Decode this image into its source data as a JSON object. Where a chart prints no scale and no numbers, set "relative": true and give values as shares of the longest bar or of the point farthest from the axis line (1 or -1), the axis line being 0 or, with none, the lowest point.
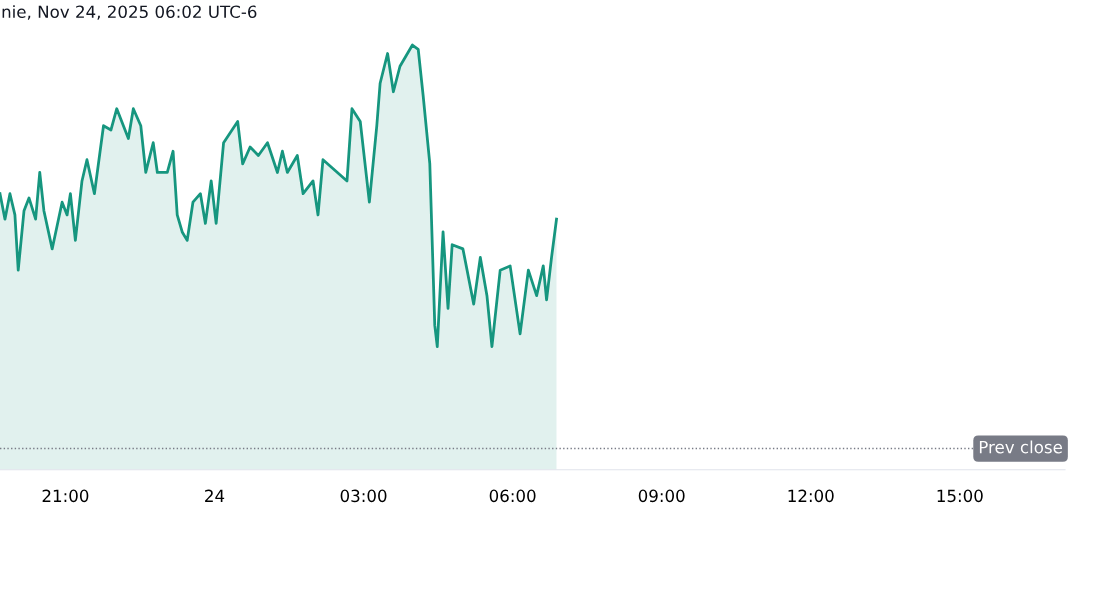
{
  "chart_data": {
    "type": "area",
    "relative": true,
    "annotations": [
      "nie, Nov 24, 2025 06:02 UTC-6"
    ],
    "x": [
      "2025-11-23T19:41",
      "2025-11-23T19:47",
      "2025-11-23T19:53",
      "2025-11-23T19:59",
      "2025-11-23T20:03",
      "2025-11-23T20:10",
      "2025-11-23T20:16",
      "2025-11-23T20:24",
      "2025-11-23T20:29",
      "2025-11-23T20:34",
      "2025-11-23T20:44",
      "2025-11-23T20:56",
      "2025-11-23T21:02",
      "2025-11-23T21:06",
      "2025-11-23T21:12",
      "2025-11-23T21:20",
      "2025-11-23T21:26",
      "2025-11-23T21:35",
      "2025-11-23T21:46",
      "2025-11-23T21:55",
      "2025-11-23T22:02",
      "2025-11-23T22:16",
      "2025-11-23T22:22",
      "2025-11-23T22:31",
      "2025-11-23T22:37",
      "2025-11-23T22:46",
      "2025-11-23T22:51",
      "2025-11-23T23:03",
      "2025-11-23T23:10",
      "2025-11-23T23:15",
      "2025-11-23T23:21",
      "2025-11-23T23:27",
      "2025-11-23T23:34",
      "2025-11-23T23:43",
      "2025-11-23T23:49",
      "2025-11-23T23:56",
      "2025-11-24T00:02",
      "2025-11-24T00:11",
      "2025-11-24T00:28",
      "2025-11-24T00:34",
      "2025-11-24T00:43",
      "2025-11-24T00:53",
      "2025-11-24T01:04",
      "2025-11-24T01:16",
      "2025-11-24T01:22",
      "2025-11-24T01:28",
      "2025-11-24T01:40",
      "2025-11-24T01:47",
      "2025-11-24T01:59",
      "2025-11-24T02:05",
      "2025-11-24T02:11",
      "2025-11-24T02:40",
      "2025-11-24T02:46",
      "2025-11-24T02:56",
      "2025-11-24T03:07",
      "2025-11-24T03:16",
      "2025-11-24T03:20",
      "2025-11-24T03:29",
      "2025-11-24T03:36",
      "2025-11-24T03:44",
      "2025-11-24T03:59",
      "2025-11-24T04:06",
      "2025-11-24T04:12",
      "2025-11-24T04:20",
      "2025-11-24T04:26",
      "2025-11-24T04:29",
      "2025-11-24T04:36",
      "2025-11-24T04:42",
      "2025-11-24T04:47",
      "2025-11-24T05:00",
      "2025-11-24T05:13",
      "2025-11-24T05:21",
      "2025-11-24T05:29",
      "2025-11-24T05:35",
      "2025-11-24T05:45",
      "2025-11-24T05:57",
      "2025-11-24T06:09",
      "2025-11-24T06:19",
      "2025-11-24T06:29",
      "2025-11-24T06:37",
      "2025-11-24T06:41",
      "2025-11-24T06:47",
      "2025-11-24T06:53"
    ],
    "series": [
      {
        "color": "#16967f",
        "values": [
          0.65,
          0.59,
          0.65,
          0.6,
          0.47,
          0.61,
          0.64,
          0.59,
          0.7,
          0.61,
          0.52,
          0.63,
          0.6,
          0.65,
          0.54,
          0.68,
          0.73,
          0.65,
          0.81,
          0.8,
          0.85,
          0.78,
          0.85,
          0.81,
          0.7,
          0.77,
          0.7,
          0.7,
          0.75,
          0.6,
          0.56,
          0.54,
          0.63,
          0.65,
          0.58,
          0.68,
          0.58,
          0.77,
          0.82,
          0.72,
          0.76,
          0.74,
          0.77,
          0.7,
          0.75,
          0.7,
          0.74,
          0.65,
          0.68,
          0.6,
          0.73,
          0.68,
          0.85,
          0.82,
          0.63,
          0.81,
          0.91,
          0.98,
          0.89,
          0.95,
          1,
          0.99,
          0.88,
          0.72,
          0.34,
          0.29,
          0.56,
          0.38,
          0.53,
          0.52,
          0.39,
          0.5,
          0.41,
          0.29,
          0.47,
          0.48,
          0.32,
          0.47,
          0.41,
          0.48,
          0.4,
          0.5,
          0.59
        ]
      }
    ],
    "xlim": [
      "2025-11-23T19:41",
      "2025-11-24T17:07"
    ],
    "xticks": [
      {
        "value": "2025-11-23T21:00",
        "label": "21:00"
      },
      {
        "value": "2025-11-24T00:00",
        "label": "24"
      },
      {
        "value": "2025-11-24T03:00",
        "label": "03:00"
      },
      {
        "value": "2025-11-24T06:00",
        "label": "06:00"
      },
      {
        "value": "2025-11-24T09:00",
        "label": "09:00"
      },
      {
        "value": "2025-11-24T12:00",
        "label": "12:00"
      },
      {
        "value": "2025-11-24T15:00",
        "label": "15:00"
      }
    ],
    "tick_labels": "x",
    "ref_lines": [
      {
        "axis": "y",
        "value": 0.05,
        "label": "Prev close",
        "color": "#787b86",
        "line_style": "dotted"
      }
    ]
  }
}
